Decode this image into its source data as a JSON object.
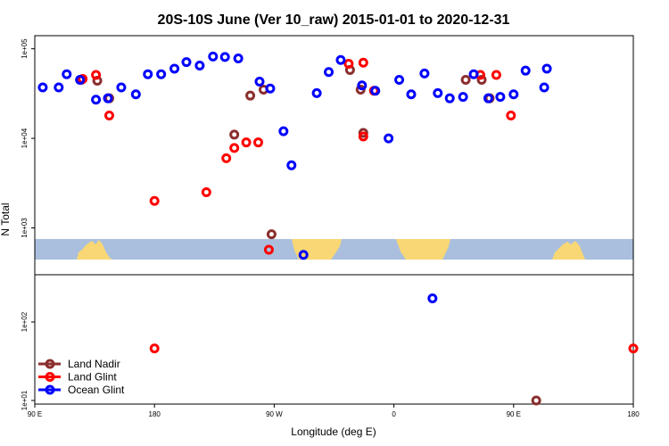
{
  "chart_data": {
    "type": "scatter",
    "title": "20S-10S June (Ver 10_raw)   2015-01-01 to 2020-12-31",
    "xlabel": "Longitude (deg E)",
    "ylabel": "N Total",
    "x_ticks": [
      {
        "value": 90,
        "label": "90 E"
      },
      {
        "value": 180,
        "label": "180"
      },
      {
        "value": 270,
        "label": "90 W"
      },
      {
        "value": 360,
        "label": "0"
      },
      {
        "value": 450,
        "label": "90 E"
      },
      {
        "value": 540,
        "label": "180"
      }
    ],
    "xlim": [
      90,
      540
    ],
    "y_scale": "log",
    "upper_panel": {
      "ylim": [
        300,
        140000
      ],
      "y_ticks": [
        {
          "value": 1000,
          "label": "1e+03"
        },
        {
          "value": 10000,
          "label": "1e+04"
        },
        {
          "value": 100000,
          "label": "1e+05"
        }
      ]
    },
    "lower_panel": {
      "ylim": [
        9,
        400
      ],
      "y_ticks": [
        {
          "value": 10,
          "label": "1e+01"
        },
        {
          "value": 100,
          "label": "1e+02"
        }
      ]
    },
    "legend": {
      "position": "bottom-left"
    },
    "colors": {
      "land_nadir": "#8b2e2e",
      "land_glint": "#ff0000",
      "ocean_glint": "#0000ff",
      "map_ocean": "#a9bfdd",
      "map_land": "#f9d774"
    },
    "series": [
      {
        "name": "Land Nadir",
        "color": "#8b2e2e",
        "panel": "upper",
        "points": [
          [
            125,
            45000
          ],
          [
            137,
            44000
          ],
          [
            146,
            28000
          ],
          [
            240,
            11000
          ],
          [
            252,
            30000
          ],
          [
            262,
            35000
          ],
          [
            268,
            850
          ],
          [
            327,
            58000
          ],
          [
            335,
            35000
          ],
          [
            337,
            11500
          ],
          [
            414,
            45000
          ],
          [
            426,
            45000
          ],
          [
            432,
            28000
          ]
        ]
      },
      {
        "name": "Land Glint",
        "color": "#ff0000",
        "panel": "upper",
        "points": [
          [
            126,
            46000
          ],
          [
            136,
            51000
          ],
          [
            146,
            18000
          ],
          [
            180,
            2000
          ],
          [
            219,
            2500
          ],
          [
            234,
            6000
          ],
          [
            240,
            7800
          ],
          [
            249,
            9000
          ],
          [
            258,
            9000
          ],
          [
            266,
            570
          ],
          [
            326,
            68000
          ],
          [
            337,
            70000
          ],
          [
            345,
            34000
          ],
          [
            337,
            10500
          ],
          [
            425,
            51000
          ],
          [
            437,
            51000
          ],
          [
            448,
            18000
          ]
        ]
      },
      {
        "name": "Ocean Glint",
        "color": "#0000ff",
        "panel": "upper",
        "points": [
          [
            96,
            37000
          ],
          [
            108,
            37000
          ],
          [
            114,
            52000
          ],
          [
            124,
            45000
          ],
          [
            136,
            27000
          ],
          [
            145,
            28000
          ],
          [
            155,
            37000
          ],
          [
            166,
            31000
          ],
          [
            175,
            52000
          ],
          [
            185,
            52000
          ],
          [
            195,
            60000
          ],
          [
            204,
            71000
          ],
          [
            214,
            65000
          ],
          [
            224,
            82000
          ],
          [
            233,
            81000
          ],
          [
            243,
            78000
          ],
          [
            259,
            43000
          ],
          [
            267,
            36000
          ],
          [
            277,
            12000
          ],
          [
            283,
            5000
          ],
          [
            292,
            500
          ],
          [
            302,
            32000
          ],
          [
            311,
            55000
          ],
          [
            320,
            75000
          ],
          [
            336,
            39000
          ],
          [
            346,
            34000
          ],
          [
            356,
            10000
          ],
          [
            364,
            45000
          ],
          [
            373,
            31000
          ],
          [
            383,
            53000
          ],
          [
            393,
            32000
          ],
          [
            402,
            28000
          ],
          [
            412,
            29000
          ],
          [
            420,
            52000
          ],
          [
            431,
            28000
          ],
          [
            440,
            29000
          ],
          [
            450,
            31000
          ],
          [
            459,
            57000
          ],
          [
            473,
            37000
          ],
          [
            475,
            60000
          ]
        ]
      },
      {
        "name": "Land Glint",
        "color": "#ff0000",
        "panel": "lower",
        "points": [
          [
            180,
            46
          ],
          [
            540,
            46
          ]
        ]
      },
      {
        "name": "Land Nadir",
        "color": "#8b2e2e",
        "panel": "lower",
        "points": [
          [
            467,
            10
          ]
        ]
      },
      {
        "name": "Ocean Glint",
        "color": "#0000ff",
        "panel": "lower",
        "points": [
          [
            389,
            200
          ]
        ]
      }
    ],
    "legend_entries": [
      "Land Nadir",
      "Land Glint",
      "Ocean Glint"
    ]
  }
}
